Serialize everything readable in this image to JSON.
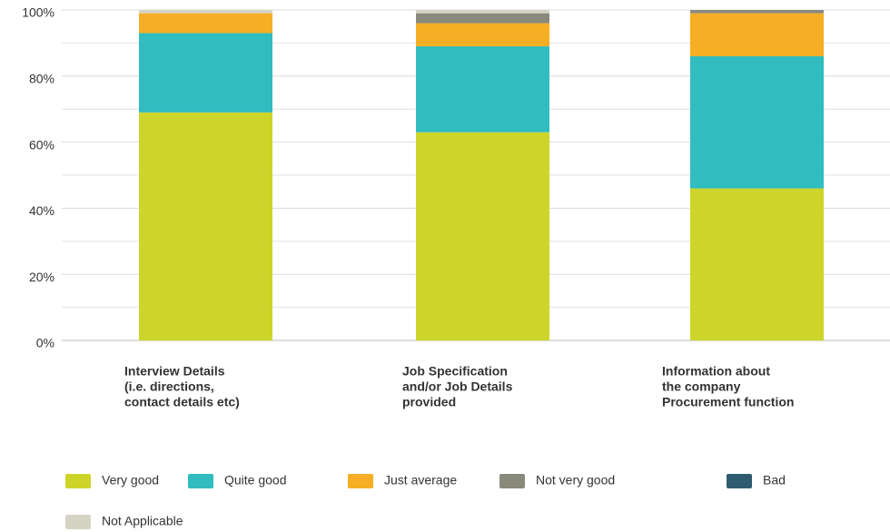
{
  "chart_data": {
    "type": "stacked_bar",
    "categories": [
      [
        "Interview Details",
        "(i.e. directions,",
        "contact details etc)"
      ],
      [
        "Job Specification",
        "and/or Job Details",
        "provided"
      ],
      [
        "Information about",
        "the company",
        "Procurement function"
      ]
    ],
    "series": [
      {
        "name": "Very good",
        "color": "#cdd52a",
        "values": [
          69,
          63,
          46
        ]
      },
      {
        "name": "Quite good",
        "color": "#31bcbf",
        "values": [
          24,
          26,
          40
        ]
      },
      {
        "name": "Just average",
        "color": "#f6ae24",
        "values": [
          6,
          7,
          13
        ]
      },
      {
        "name": "Not very good",
        "color": "#8a8a7c",
        "values": [
          0,
          3,
          1
        ]
      },
      {
        "name": "Bad",
        "color": "#2e5b6e",
        "values": [
          0,
          0,
          0
        ]
      },
      {
        "name": "Not Applicable",
        "color": "#d5d3c4",
        "values": [
          1,
          1,
          0
        ]
      }
    ],
    "ylim": [
      0,
      100
    ],
    "yticks": [
      {
        "value": 0,
        "label": "0%"
      },
      {
        "value": 20,
        "label": "20%"
      },
      {
        "value": 40,
        "label": "40%"
      },
      {
        "value": 60,
        "label": "60%"
      },
      {
        "value": 80,
        "label": "80%"
      },
      {
        "value": 100,
        "label": "100%"
      }
    ],
    "minor_yticks": [
      10,
      30,
      50,
      70,
      90
    ],
    "grid": true
  }
}
